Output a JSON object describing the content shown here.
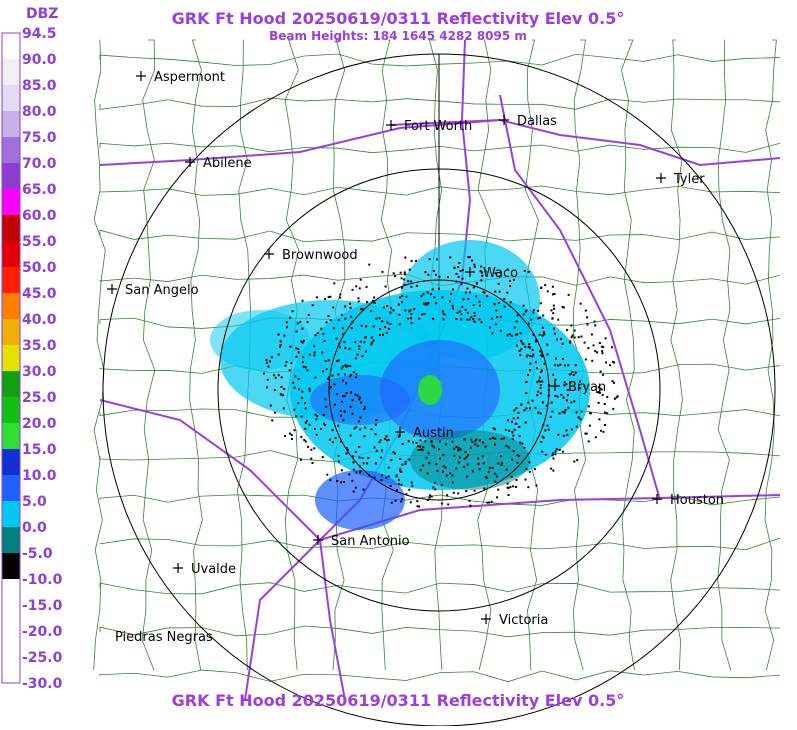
{
  "header": {
    "title": "GRK Ft Hood 20250619/0311 Reflectivity Elev 0.5°",
    "subtitle": "Beam Heights: 184 1645 4282 8095 m"
  },
  "legend": {
    "unit": "DBZ",
    "labels": [
      "94.5",
      "90.0",
      "85.0",
      "80.0",
      "75.0",
      "70.0",
      "65.0",
      "60.0",
      "55.0",
      "50.0",
      "45.0",
      "40.0",
      "35.0",
      "30.0",
      "25.0",
      "20.0",
      "15.0",
      "10.0",
      "5.0",
      "0.0",
      "-5.0",
      "-10.0",
      "-15.0",
      "-20.0",
      "-25.0",
      "-30.0"
    ],
    "colors": [
      "#ffffff",
      "#f2eef8",
      "#e4dcf2",
      "#c8b0e8",
      "#a070d8",
      "#8a3fd0",
      "#ff00ff",
      "#c00000",
      "#e00000",
      "#ff2000",
      "#ff8000",
      "#f0b000",
      "#e8e000",
      "#10a010",
      "#10c010",
      "#30e030",
      "#1030d0",
      "#2060ff",
      "#00c8f0",
      "#008080",
      "#000000",
      "#ffffff",
      "#ffffff",
      "#ffffff",
      "#ffffff"
    ]
  },
  "cities": [
    "Aspermont",
    "Fort Worth",
    "Dallas",
    "Abilene",
    "Tyler",
    "Brownwood",
    "Waco",
    "San Angelo",
    "Bryan",
    "Austin",
    "Houston",
    "San Antonio",
    "Uvalde",
    "Victoria",
    "Piedras Negras"
  ],
  "footer": {
    "title": "GRK Ft Hood 20250619/0311 Reflectivity Elev 0.5°"
  }
}
